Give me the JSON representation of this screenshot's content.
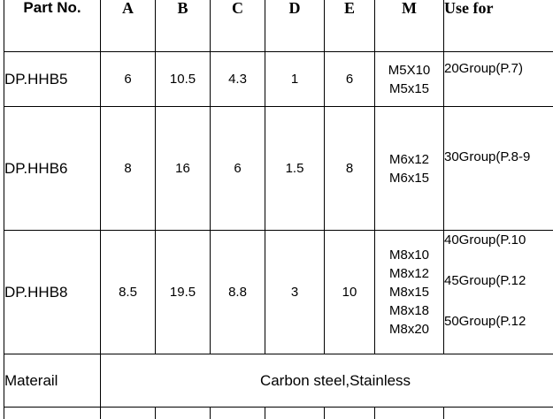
{
  "headers": {
    "part_no": "Part No.",
    "a": "A",
    "b": "B",
    "c": "C",
    "d": "D",
    "e": "E",
    "m": "M",
    "use_for": "Use for"
  },
  "rows": [
    {
      "part": "DP.HHB5",
      "a": "6",
      "b": "10.5",
      "c": "4.3",
      "d": "1",
      "e": "6",
      "m": [
        "M5X10",
        "M5x15"
      ],
      "use_for": [
        "20Group(P.7)"
      ]
    },
    {
      "part": "DP.HHB6",
      "a": "8",
      "b": "16",
      "c": "6",
      "d": "1.5",
      "e": "8",
      "m": [
        "M6x12",
        "M6x15"
      ],
      "use_for": [
        "30Group(P.8-9"
      ]
    },
    {
      "part": "DP.HHB8",
      "a": "8.5",
      "b": "19.5",
      "c": "8.8",
      "d": "3",
      "e": "10",
      "m": [
        "M8x10",
        "M8x12",
        "M8x15",
        "M8x18",
        "M8x20"
      ],
      "use_for": [
        "40Group(P.10",
        "45Group(P.12",
        "50Group(P.12"
      ]
    }
  ],
  "material": {
    "label": "Materail",
    "value": "Carbon steel,Stainless"
  }
}
